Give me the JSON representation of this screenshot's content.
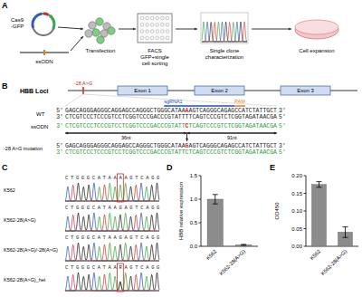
{
  "panel_labels": [
    "A",
    "B",
    "C",
    "D",
    "E"
  ],
  "workflow": {
    "plasmid_label": [
      "Cas9",
      "-GFP"
    ],
    "donor_label": "ssODN",
    "steps": [
      [
        "Transfection"
      ],
      [
        "FACS",
        "GFP+single",
        "cell sorting"
      ],
      [
        "Single clone",
        "characterization"
      ],
      [
        "Cell expansion"
      ]
    ]
  },
  "locus": {
    "title": "HBB Loci",
    "mutation": "-28 A>G",
    "exons": [
      "Exon 1",
      "Exon 2",
      "Exon 3"
    ],
    "sgrna": "sgRNA1",
    "pam": "PAM",
    "wt_label": "WT",
    "ssodn_label": "ssODN",
    "mut_label": "-28 A>G mutation",
    "wt": [
      {
        "left": "5'",
        "seq": "GAGCAGGGAGGGCAGGAGCCAGGGCTGGGCATAAAAGTCAGGGCAGAGCCATCTATTGCT",
        "right": "3'"
      },
      {
        "left": "3'",
        "seq": "CTCGTCCCTCCCGTCCTCGGTCCCGACCCGTATTTTCAGTCCCGTCTCGGTAGATAACGA",
        "right": "5'"
      }
    ],
    "ssodn": {
      "left": "3'",
      "seq": "CTCGTCCCTCCCGTCCTCGGTCCCGACCCGTATTCTCAGTCCCGTCTCGGTAGATAACGA",
      "right": "5'"
    },
    "arm_labels": [
      "36nt",
      "91nt"
    ],
    "mut": [
      {
        "left": "5'",
        "seq": "GAGCAGGGAGGGCAGGAGCCAGGGCTGGGCATAAGAGTCAGGGCAGAGCCATCTATTGCT",
        "right": "3'"
      },
      {
        "left": "3'",
        "seq": "CTCGTCCCTCCCGTCCTCGGTCCCGACCCGTATTCTCAGTCCCGTCTCGGTAGATAACGA",
        "right": "5'"
      }
    ]
  },
  "chromatograms": {
    "rows": [
      {
        "label": "K562",
        "seq": "CTGGGCATAAAAGTCAGG"
      },
      {
        "label": "K562-28(A>G)",
        "seq": "CTGGGCATAAGAGTCAGG"
      },
      {
        "label": "K562-28(A>G)/-28(A>G)",
        "seq": "CTGGGCATAAGAGTCAGG"
      },
      {
        "label": "K562-28(A>G)_het",
        "seq": "CTGGGCATAARAGTCAGG"
      }
    ]
  },
  "chart_data": [
    {
      "type": "bar",
      "ylabel": "HBB relative expression",
      "categories": [
        "K562",
        "K562-28(A>G)"
      ],
      "values": [
        1.0,
        0.03
      ],
      "errors": [
        0.1,
        0.01
      ],
      "color": "#8c8c8c",
      "ylim": [
        0,
        1.5
      ],
      "yticks": [
        {
          "value": 0,
          "label": "0.0"
        },
        {
          "value": 0.5,
          "label": "0.5"
        },
        {
          "value": 1,
          "label": "1.0"
        },
        {
          "value": 1.5,
          "label": "1.5"
        }
      ]
    },
    {
      "type": "bar",
      "ylabel": "OD450",
      "categories": [
        "K562",
        "K562-28(A>G)"
      ],
      "values": [
        0.175,
        0.04
      ],
      "errors": [
        0.008,
        0.015
      ],
      "color": "#8c8c8c",
      "ylim": [
        0,
        0.2
      ],
      "yticks": [
        {
          "value": 0,
          "label": "0.00"
        },
        {
          "value": 0.05,
          "label": "0.05"
        },
        {
          "value": 0.1,
          "label": "0.10"
        },
        {
          "value": 0.15,
          "label": "0.15"
        },
        {
          "value": 0.2,
          "label": "0.20"
        }
      ]
    }
  ]
}
